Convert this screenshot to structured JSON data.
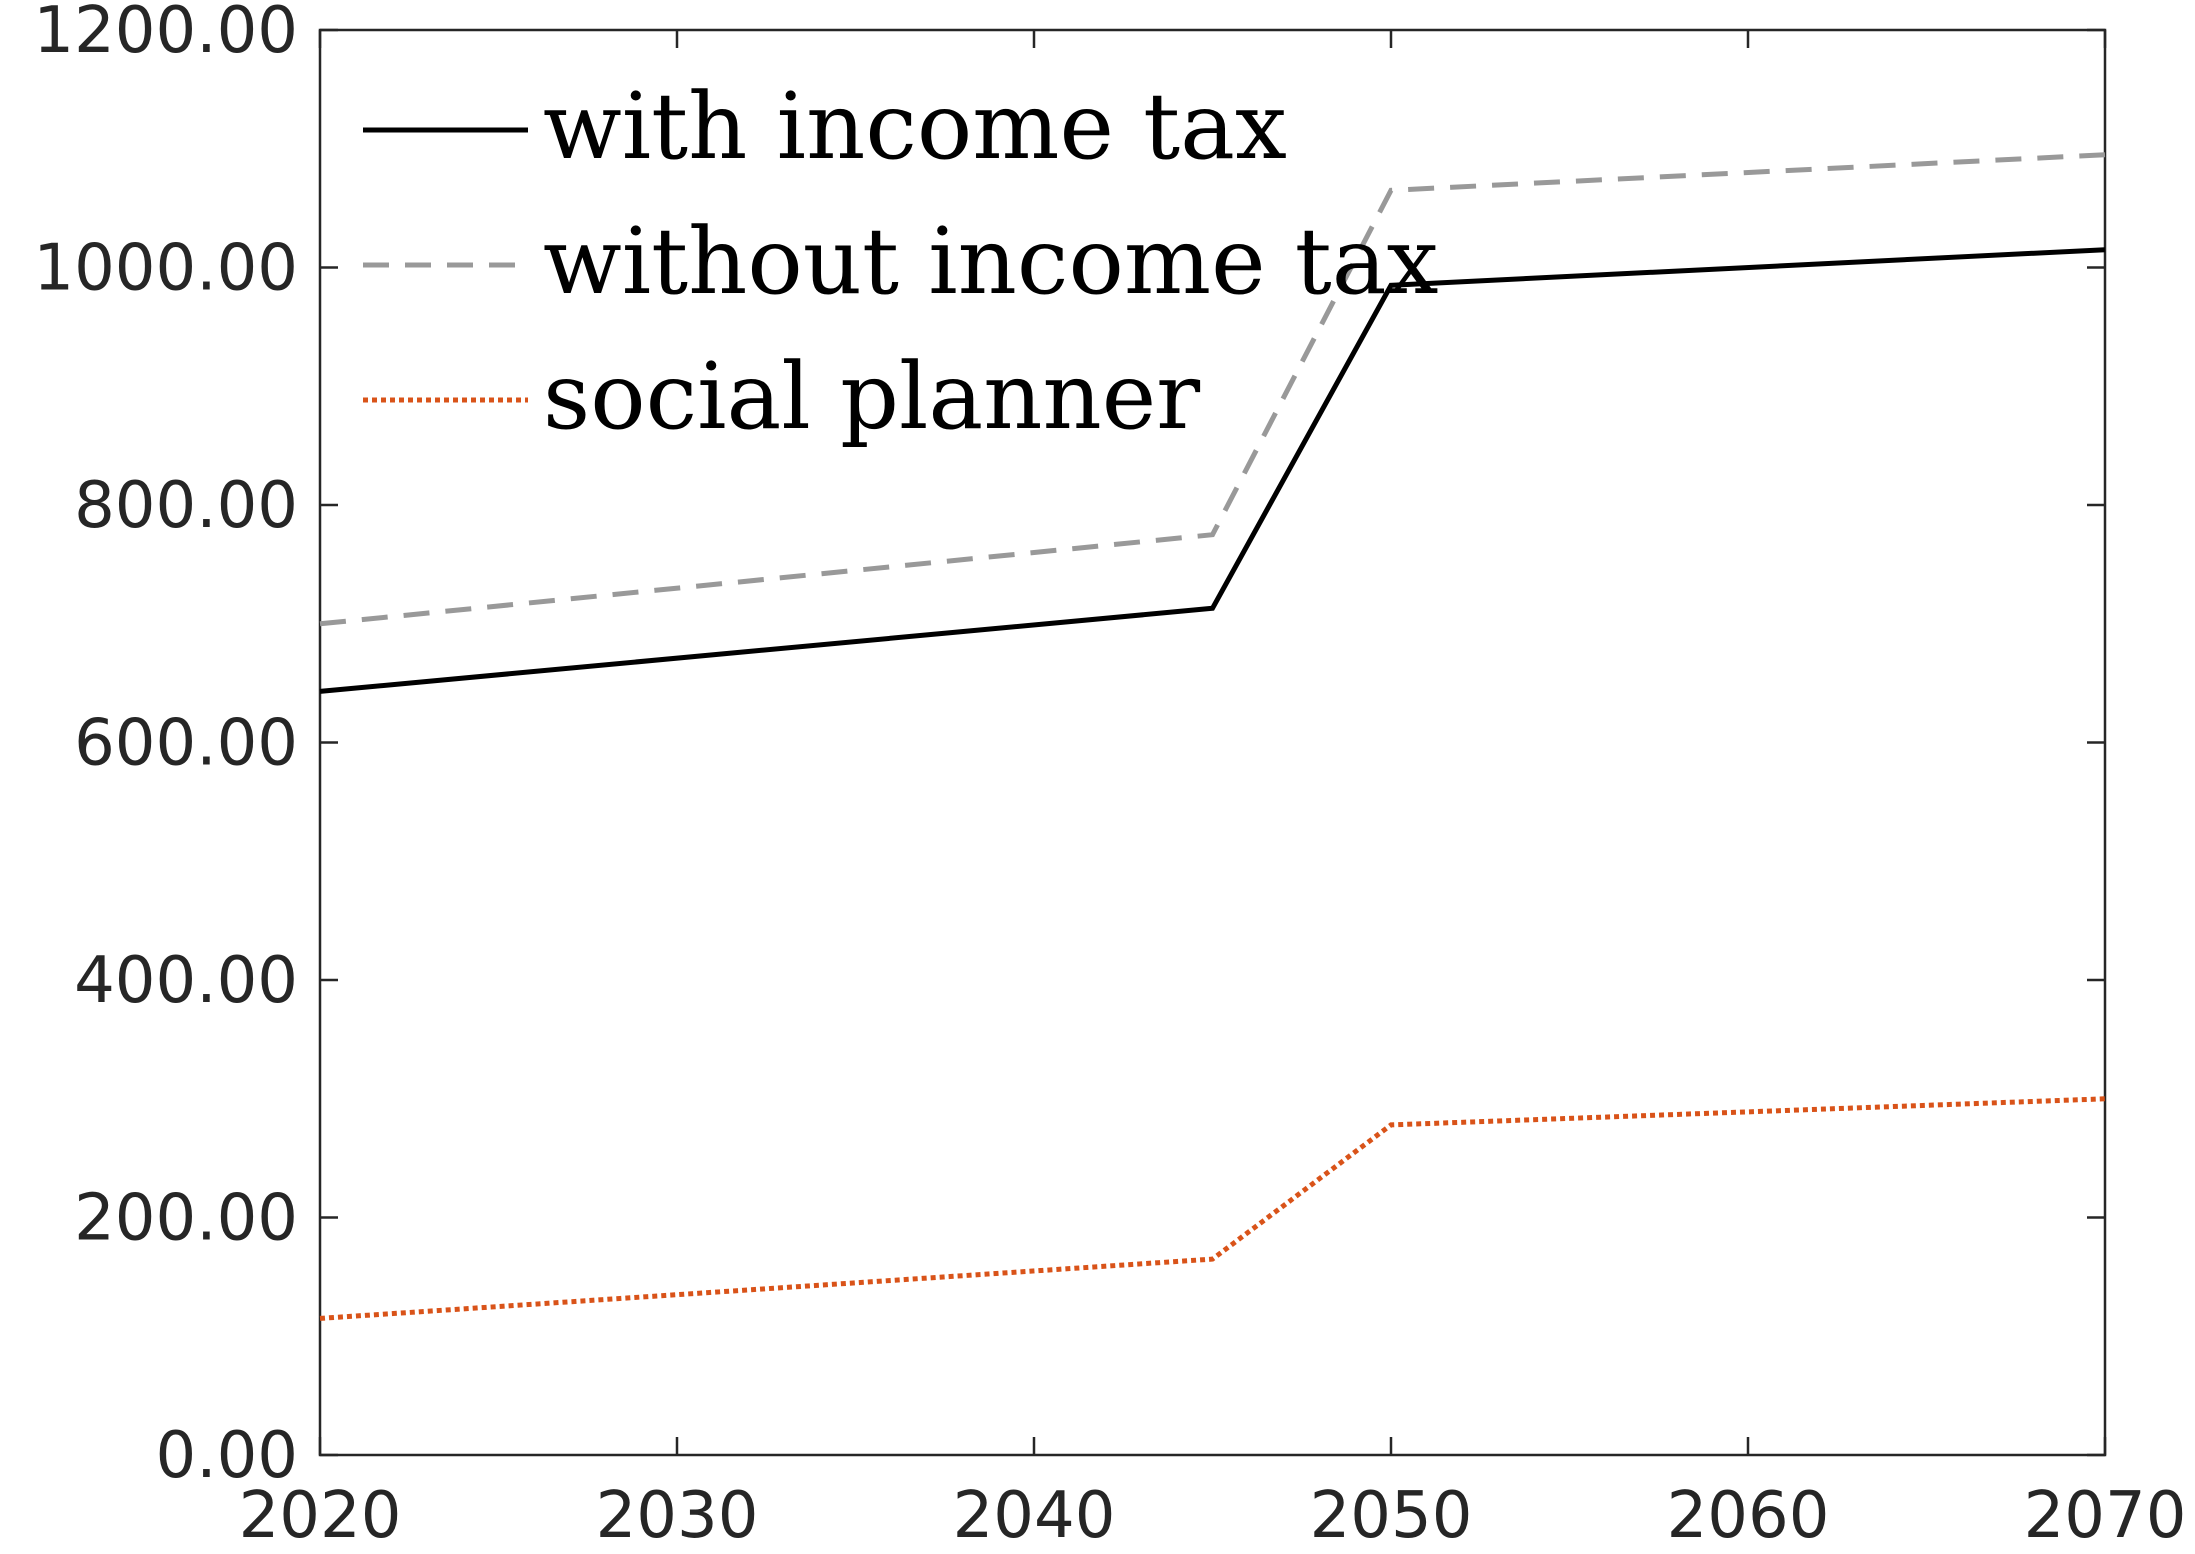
{
  "chart_data": {
    "type": "line",
    "title": "",
    "xlabel": "",
    "ylabel": "",
    "x": [
      2020,
      2045,
      2050,
      2070
    ],
    "xlim": [
      2020,
      2070
    ],
    "ylim": [
      0,
      1200
    ],
    "xticks": [
      2020,
      2030,
      2040,
      2050,
      2060,
      2070
    ],
    "yticks": [
      0,
      200,
      400,
      600,
      800,
      1000,
      1200
    ],
    "xtick_labels": [
      "2020",
      "2030",
      "2040",
      "2050",
      "2060",
      "2070"
    ],
    "ytick_labels": [
      "0.00",
      "200.00",
      "400.00",
      "600.00",
      "800.00",
      "1000.00",
      "1200.00"
    ],
    "grid": false,
    "legend_position": "top-left",
    "series": [
      {
        "name": "with income tax",
        "values": [
          643,
          713,
          985,
          1015
        ],
        "color": "#000000",
        "style": "solid"
      },
      {
        "name": "without income tax",
        "values": [
          700,
          775,
          1065,
          1095
        ],
        "color": "#999999",
        "style": "dashed"
      },
      {
        "name": "social planner",
        "values": [
          115,
          165,
          278,
          300
        ],
        "color": "#D95319",
        "style": "dotted"
      }
    ]
  }
}
